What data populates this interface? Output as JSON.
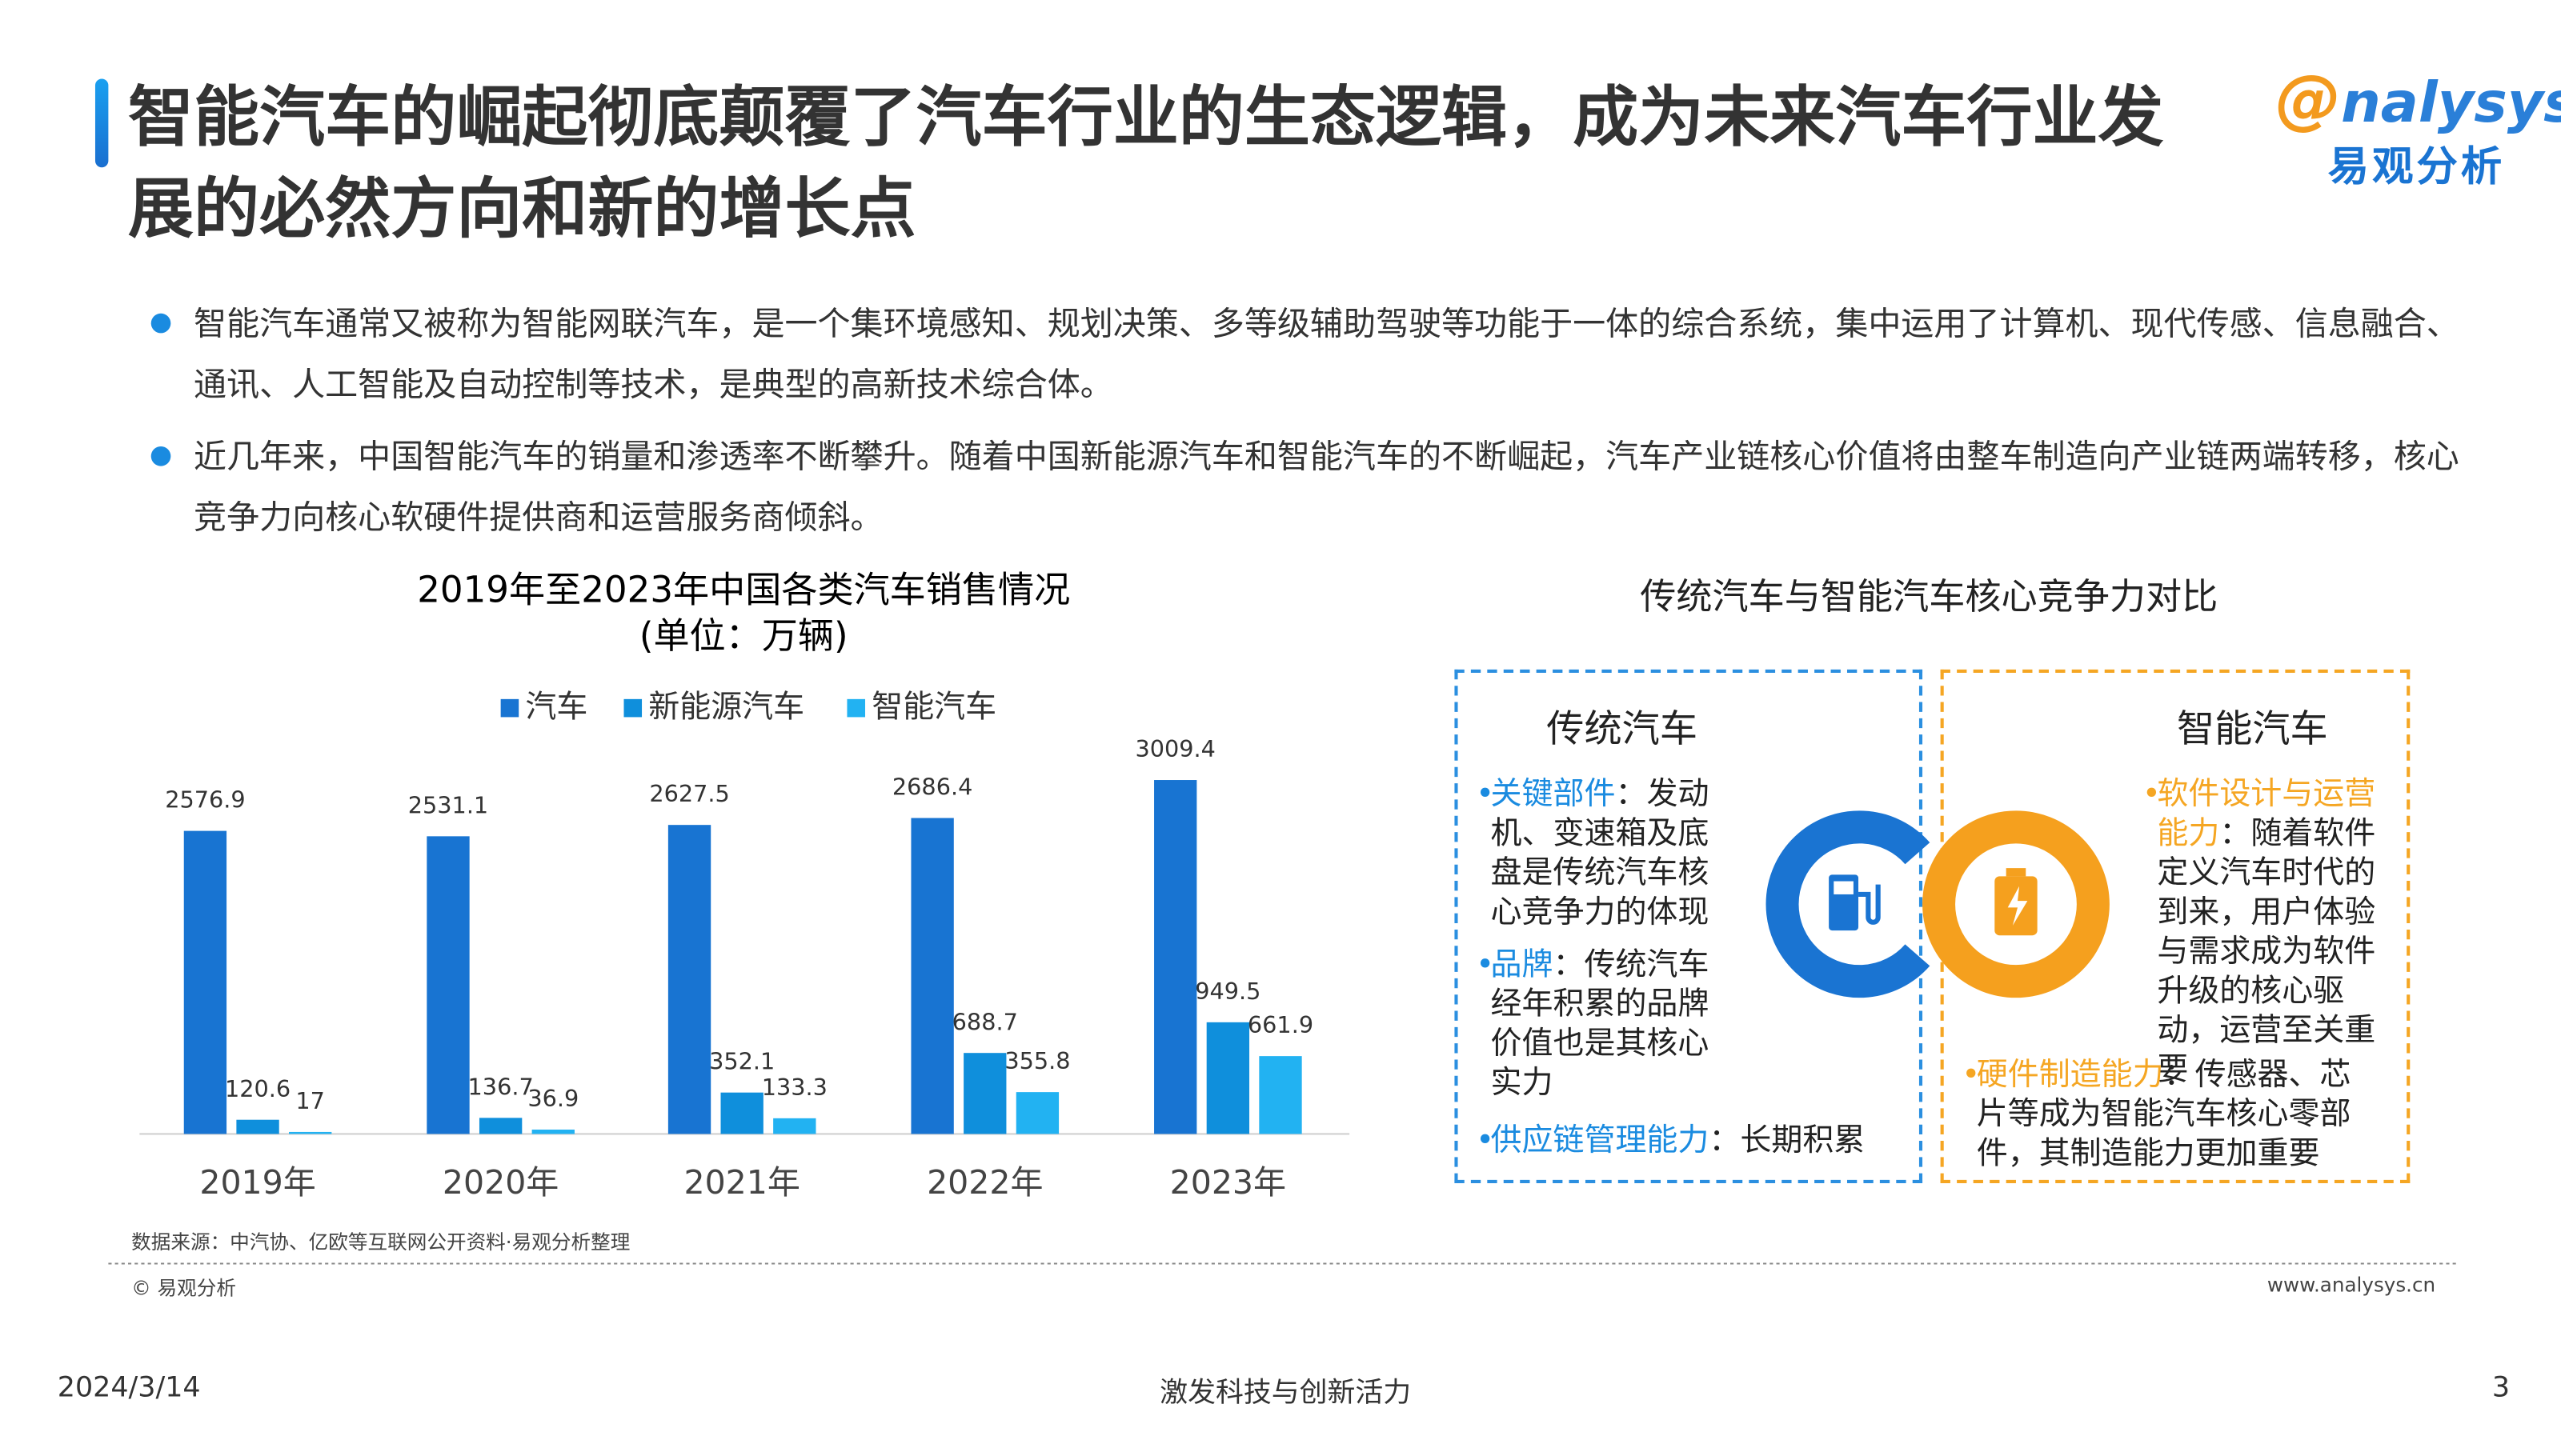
{
  "header": {
    "title": "智能汽车的崛起彻底颠覆了汽车行业的生态逻辑，成为未来汽车行业发展的必然方向和新的增长点",
    "logo_en": "nalysys",
    "logo_cn": "易观分析"
  },
  "bullets": [
    "智能汽车通常又被称为智能网联汽车，是一个集环境感知、规划决策、多等级辅助驾驶等功能于一体的综合系统，集中运用了计算机、现代传感、信息融合、通讯、人工智能及自动控制等技术，是典型的高新技术综合体。",
    "近几年来，中国智能汽车的销量和渗透率不断攀升。随着中国新能源汽车和智能汽车的不断崛起，汽车产业链核心价值将由整车制造向产业链两端转移，核心竞争力向核心软硬件提供商和运营服务商倾斜。"
  ],
  "chart_data": {
    "type": "bar",
    "title": "2019年至2023年中国各类汽车销售情况",
    "subtitle": "(单位：万辆)",
    "categories": [
      "2019年",
      "2020年",
      "2021年",
      "2022年",
      "2023年"
    ],
    "series": [
      {
        "name": "汽车",
        "color": "#1874d2",
        "values": [
          2576.9,
          2531.1,
          2627.5,
          2686.4,
          3009.4
        ]
      },
      {
        "name": "新能源汽车",
        "color": "#0f8fdc",
        "values": [
          120.6,
          136.7,
          352.1,
          688.7,
          949.5
        ]
      },
      {
        "name": "智能汽车",
        "color": "#22b2f2",
        "values": [
          17,
          36.9,
          133.3,
          355.8,
          661.9
        ]
      }
    ]
  },
  "comparison": {
    "title": "传统汽车与智能汽车核心竞争力对比",
    "left": {
      "heading": "传统汽车",
      "items": [
        {
          "label": "关键部件",
          "text": "：发动机、变速箱及底盘是传统汽车核心竞争力的体现"
        },
        {
          "label": "品牌",
          "text": "：传统汽车经年积累的品牌价值也是其核心实力"
        },
        {
          "label": "供应链管理能力",
          "text": "：长期积累"
        }
      ]
    },
    "right": {
      "heading": "智能汽车",
      "items": [
        {
          "label": "软件设计与运营能力",
          "text": "：随着软件定义汽车时代的到来，用户体验与需求成为软件升级的核心驱动，运营至关重要"
        },
        {
          "label": "硬件制造能力",
          "text": "：传感器、芯片等成为智能汽车核心零部件，其制造能力更加重要"
        }
      ]
    }
  },
  "footer": {
    "source": "数据来源：中汽协、亿欧等互联网公开资料·易观分析整理",
    "copyright": "© 易观分析",
    "website": "www.analysys.cn",
    "date": "2024/3/14",
    "slogan": "激发科技与创新活力",
    "page": "3"
  }
}
